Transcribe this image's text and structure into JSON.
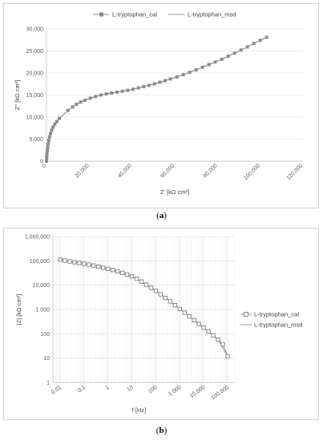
{
  "chart_data": [
    {
      "type": "scatter",
      "panel_label": "a",
      "xlabel": "Z' [kΩ cm²]",
      "ylabel": "Z'' [kΩ cm²]",
      "xlim": [
        0,
        120000
      ],
      "ylim": [
        0,
        30000
      ],
      "x_ticks": [
        "0",
        "20,000",
        "40,000",
        "60,000",
        "80,000",
        "100,000",
        "120,000"
      ],
      "y_ticks": [
        "0",
        "5,000",
        "10,000",
        "15,000",
        "20,000",
        "25,000",
        "30,000"
      ],
      "grid": "horizontal",
      "legend_position": "top",
      "series": [
        {
          "name": "L-tryptophan_cal",
          "marker": "filled-square",
          "color": "#8c8c8c",
          "x": [
            0,
            50,
            120,
            220,
            360,
            540,
            780,
            1080,
            1450,
            1900,
            2450,
            3100,
            3900,
            4850,
            6000,
            10000,
            12200,
            14000,
            16000,
            18000,
            20500,
            23000,
            25500,
            28000,
            30500,
            33000,
            35500,
            38000,
            40500,
            43000,
            45500,
            48000,
            50500,
            53000,
            55500,
            58000,
            61000,
            64000,
            67000,
            70000,
            73000,
            76000,
            79000,
            82000,
            85000,
            88000,
            91000,
            94000,
            97000,
            100000,
            103000
          ],
          "y": [
            0,
            600,
            1100,
            1700,
            2400,
            3100,
            3900,
            4700,
            5500,
            6300,
            7050,
            7750,
            8400,
            9000,
            9700,
            11500,
            12300,
            12900,
            13400,
            13800,
            14300,
            14650,
            15000,
            15250,
            15450,
            15650,
            15850,
            16050,
            16300,
            16600,
            16900,
            17200,
            17550,
            17900,
            18250,
            18650,
            19100,
            19600,
            20150,
            20700,
            21300,
            21900,
            22500,
            23100,
            23800,
            24500,
            25200,
            25900,
            26700,
            27400,
            28100
          ]
        },
        {
          "name": "L-tryptophan_msd",
          "marker": "line",
          "color": "#9a9a9a",
          "x": [
            0,
            120,
            360,
            780,
            1450,
            2450,
            3900,
            6000,
            10000,
            14000,
            18000,
            23000,
            28000,
            33000,
            38000,
            43000,
            48000,
            53000,
            58000,
            64000,
            70000,
            76000,
            82000,
            88000,
            94000,
            100000,
            103000
          ],
          "y": [
            0,
            1100,
            2400,
            3900,
            5500,
            7050,
            8400,
            9700,
            11500,
            12900,
            13800,
            14650,
            15250,
            15650,
            16050,
            16600,
            17200,
            17900,
            18650,
            19600,
            20700,
            21900,
            23100,
            24500,
            25900,
            27400,
            28100
          ]
        }
      ]
    },
    {
      "type": "scatter",
      "panel_label": "b",
      "xlabel": "f [Hz]",
      "ylabel": "|Z| [kΩ cm²]",
      "xscale": "log",
      "yscale": "log",
      "xlim": [
        0.005,
        200000
      ],
      "ylim": [
        1,
        1000000
      ],
      "x_ticks": [
        "0.01",
        "0.1",
        "1",
        "10",
        "100",
        "1 000",
        "10,000",
        "100,000"
      ],
      "y_ticks": [
        "1",
        "10",
        "100",
        "1 000",
        "10,000",
        "100,000",
        "1,000,000"
      ],
      "grid": "both",
      "legend_position": "right",
      "series": [
        {
          "name": "L-tryptophan_cal",
          "marker": "open-square",
          "color": "#7f7f7f",
          "x": [
            0.01,
            0.0158,
            0.0251,
            0.0398,
            0.0631,
            0.1,
            0.158,
            0.251,
            0.398,
            0.631,
            1,
            1.58,
            2.51,
            3.98,
            6.31,
            10,
            15.8,
            25.1,
            39.8,
            63.1,
            100,
            158,
            251,
            398,
            631,
            1000,
            1580,
            2510,
            3980,
            6310,
            10000,
            15800,
            25100,
            39800,
            63100,
            100000
          ],
          "y": [
            112000,
            103000,
            95000,
            88000,
            82000,
            76000,
            70000,
            64000,
            58000,
            52000,
            47000,
            42000,
            37000,
            32000,
            27500,
            23000,
            18500,
            14000,
            10500,
            7800,
            5800,
            4200,
            3000,
            2150,
            1500,
            1050,
            740,
            520,
            365,
            255,
            180,
            125,
            86,
            58,
            37,
            12
          ]
        },
        {
          "name": "L-tryptophan_msd",
          "marker": "line",
          "color": "#9a9a9a",
          "x": [
            0.01,
            0.1,
            1,
            10,
            25.1,
            63.1,
            158,
            398,
            1000,
            2510,
            6310,
            15800,
            39800,
            100000
          ],
          "y": [
            112000,
            76000,
            47000,
            23000,
            14000,
            7800,
            4200,
            2150,
            1050,
            520,
            255,
            125,
            58,
            12
          ]
        }
      ]
    }
  ],
  "captions": {
    "a_open": "(",
    "a_letter": "a",
    "a_close": ")",
    "b_open": "(",
    "b_letter": "b",
    "b_close": ")"
  }
}
